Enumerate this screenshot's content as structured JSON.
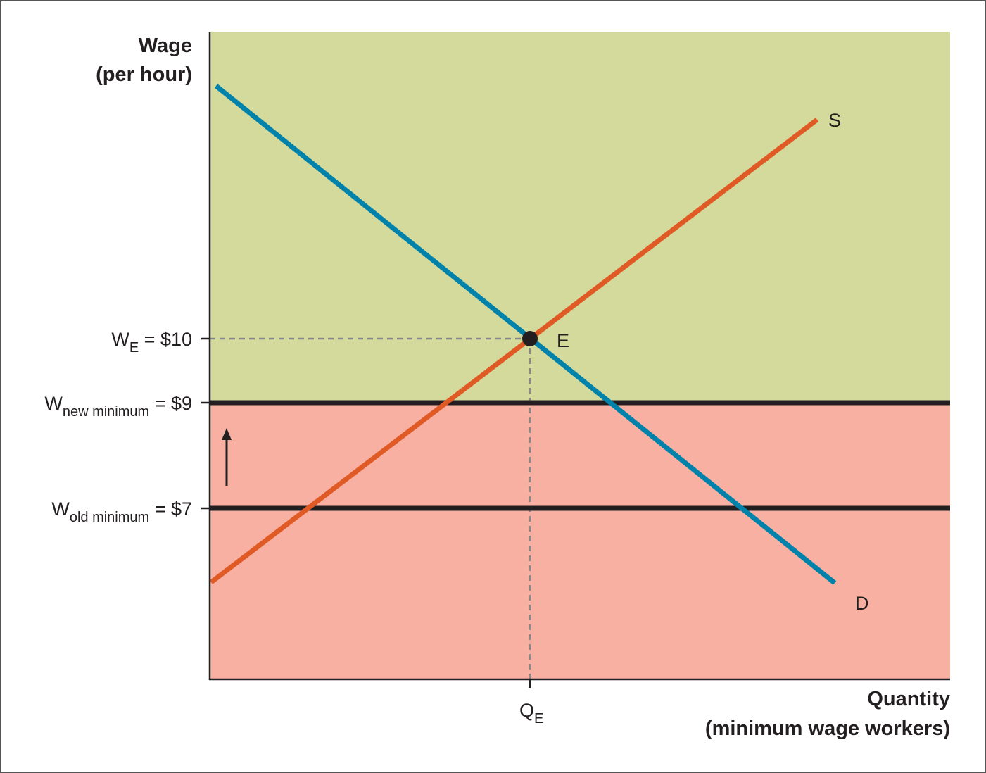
{
  "axes": {
    "y_label_lines": [
      "Wage",
      "(per hour)"
    ],
    "x_label_lines": [
      "Quantity",
      "(minimum wage workers)"
    ]
  },
  "wage_levels": [
    {
      "symbol": "W",
      "subscript": "E",
      "value_text": " = $10"
    },
    {
      "symbol": "W",
      "subscript": "new minimum",
      "value_text": " = $9"
    },
    {
      "symbol": "W",
      "subscript": "old minimum",
      "value_text": " = $7"
    }
  ],
  "quantity_level": {
    "symbol": "Q",
    "subscript": "E"
  },
  "curves": {
    "supply": "S",
    "demand": "D"
  },
  "equilibrium": "E"
}
